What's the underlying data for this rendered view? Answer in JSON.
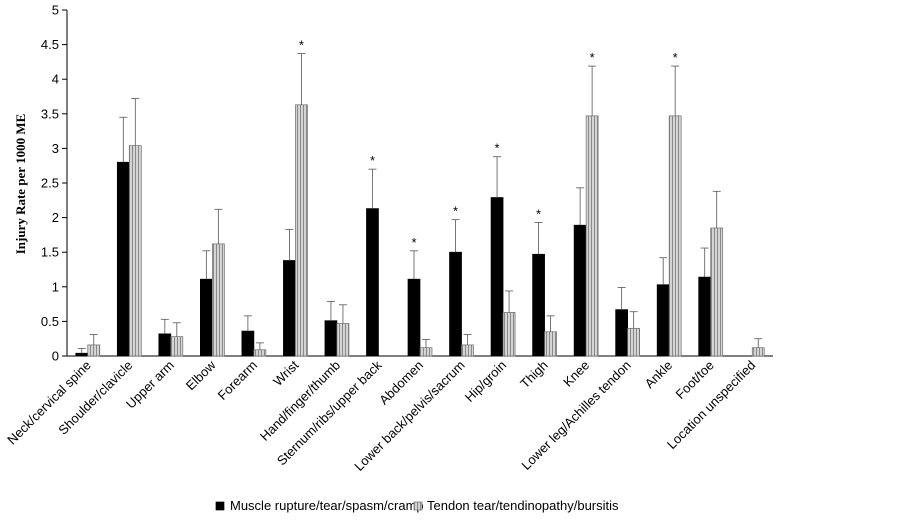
{
  "chart_data": {
    "type": "bar",
    "title": "",
    "xlabel": "",
    "ylabel": "Injury  Rate per 1000 ME",
    "ylim": [
      0,
      5
    ],
    "yticks": [
      "0",
      "0.5",
      "1",
      "1.5",
      "2",
      "2.5",
      "3",
      "3.5",
      "4",
      "4.5",
      "5"
    ],
    "grid": false,
    "legend_position": "bottom",
    "categories": [
      "Neck/cervical spine",
      "Shoulder/clavicle",
      "Upper arm",
      "Elbow",
      "Forearm",
      "Wrist",
      "Hand/finger/thumb",
      "Sternum/ribs/upper back",
      "Abdomen",
      "Lower back/pelvis/sacrum",
      "Hip/groin",
      "Thigh",
      "Knee",
      "Lower leg/Achilles tendon",
      "Ankle",
      "Foot/toe",
      "Location unspecified"
    ],
    "series": [
      {
        "name": "Muscle rupture/tear/spasm/cramp",
        "color": "#000000",
        "pattern": "solid",
        "values": [
          0.04,
          2.8,
          0.32,
          1.11,
          0.36,
          1.38,
          0.51,
          2.13,
          1.11,
          1.5,
          2.29,
          1.47,
          1.89,
          0.67,
          1.03,
          1.14,
          0
        ],
        "err": [
          0.07,
          0.65,
          0.21,
          0.41,
          0.22,
          0.45,
          0.28,
          0.57,
          0.41,
          0.47,
          0.59,
          0.46,
          0.54,
          0.32,
          0.39,
          0.42,
          0
        ]
      },
      {
        "name": "Tendon tear/tendinopathy/bursitis",
        "color": "#c0c0c0",
        "pattern": "hatched",
        "values": [
          0.16,
          3.04,
          0.28,
          1.62,
          0.09,
          3.63,
          0.47,
          0,
          0.12,
          0.16,
          0.63,
          0.35,
          3.47,
          0.4,
          3.47,
          1.85,
          0.12
        ],
        "err": [
          0.15,
          0.68,
          0.2,
          0.5,
          0.1,
          0.74,
          0.27,
          0,
          0.12,
          0.15,
          0.31,
          0.23,
          0.72,
          0.24,
          0.72,
          0.53,
          0.13
        ]
      }
    ],
    "significance_labels": [
      "",
      "",
      "",
      "",
      "",
      "*",
      "",
      "*",
      "*",
      "*",
      "*",
      "*",
      "*",
      "",
      "*",
      "",
      ""
    ]
  }
}
